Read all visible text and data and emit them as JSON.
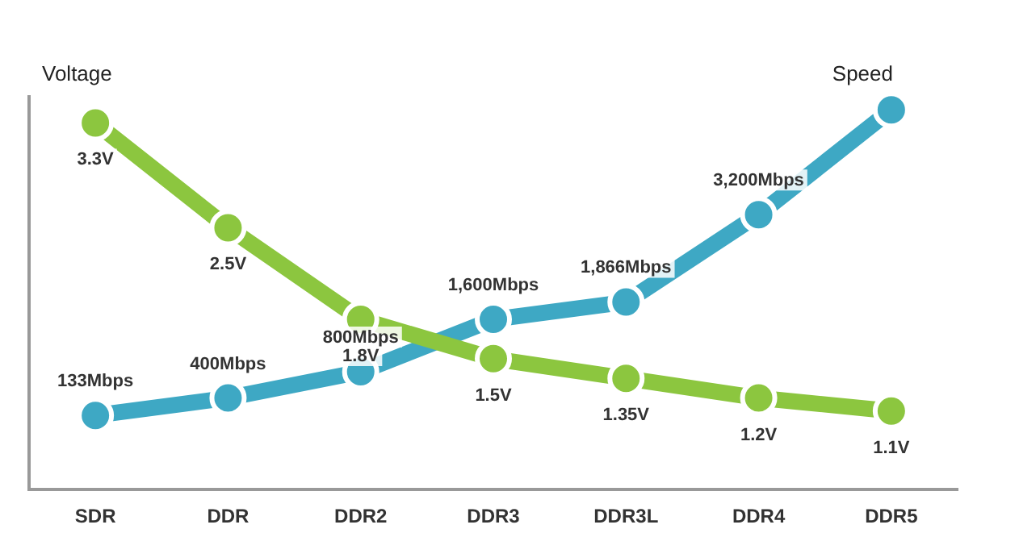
{
  "chart_data": {
    "type": "line",
    "ylabel": "Voltage",
    "y2label": "Speed",
    "categories": [
      "SDR",
      "DDR",
      "DDR2",
      "DDR3",
      "DDR3L",
      "DDR4",
      "DDR5"
    ],
    "series": [
      {
        "color": "#8cc63f",
        "values": [
          3.3,
          2.5,
          1.8,
          1.5,
          1.35,
          1.2,
          1.1
        ],
        "value_labels": [
          "3.3V",
          "2.5V",
          "1.8V",
          "1.5V",
          "1.35V",
          "1.2V",
          "1.1V"
        ]
      },
      {
        "color": "#3ea8c4",
        "axis": "y2",
        "values": [
          133,
          400,
          800,
          1600,
          1866,
          3200,
          4800
        ],
        "value_labels": [
          "133Mbps",
          "400Mbps",
          "800Mbps",
          "1,600Mbps",
          "1,866Mbps",
          "3,200Mbps",
          null
        ]
      }
    ],
    "tick_labels": "x",
    "grid": false,
    "legend": false,
    "marker": "circle",
    "line_style": "solid"
  }
}
